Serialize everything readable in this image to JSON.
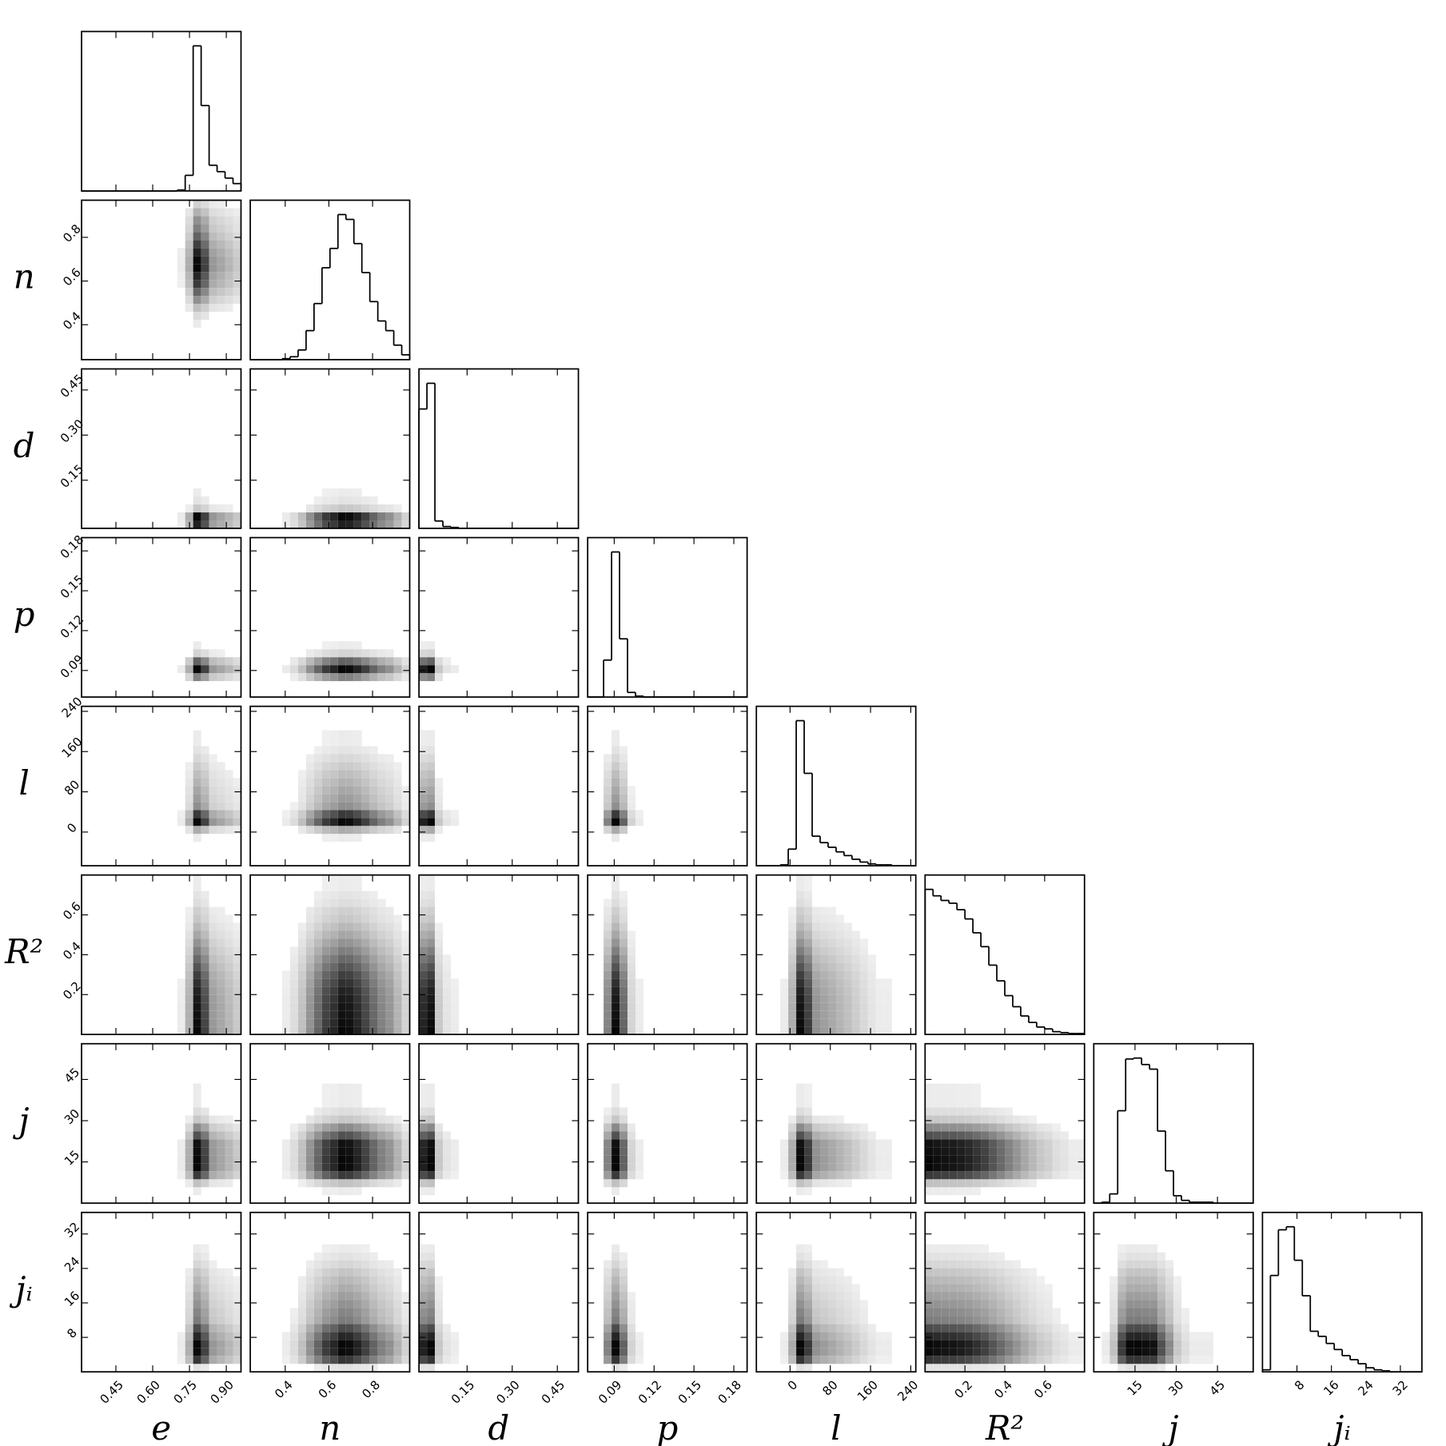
{
  "chart_data": {
    "type": "corner",
    "color": "#000000",
    "variables": [
      {
        "label": "e",
        "lim": [
          0.31,
          0.96
        ],
        "ticks": [
          0.45,
          {
            "value": 0.6,
            "label": "0.60"
          },
          0.75,
          {
            "value": 0.9,
            "label": "0.90"
          }
        ],
        "bins": [
          0.31,
          0.3425,
          0.375,
          0.4075,
          0.44,
          0.4725,
          0.505,
          0.5375,
          0.57,
          0.6025,
          0.635,
          0.6675,
          0.7,
          0.7325,
          0.765,
          0.7975,
          0.83,
          0.8625,
          0.895,
          0.9275,
          0.96
        ],
        "counts": [
          0,
          0,
          0,
          0,
          0,
          0,
          0,
          0,
          0,
          0,
          0,
          0,
          1,
          17,
          158,
          93,
          28,
          21,
          14,
          8
        ]
      },
      {
        "label": "n",
        "lim": [
          0.24,
          0.97
        ],
        "ticks": [
          0.4,
          0.6,
          0.8
        ],
        "bins": [
          0.24,
          0.2765,
          0.313,
          0.3495,
          0.386,
          0.4225,
          0.459,
          0.4955,
          0.532,
          0.5685,
          0.605,
          0.6415,
          0.678,
          0.7145,
          0.751,
          0.7875,
          0.824,
          0.8605,
          0.897,
          0.9335,
          0.97
        ],
        "counts": [
          0,
          0,
          0,
          0,
          1,
          3,
          10,
          30,
          58,
          95,
          115,
          150,
          145,
          120,
          90,
          60,
          40,
          30,
          15,
          5
        ]
      },
      {
        "label": "d",
        "lim": [
          -0.01,
          0.52
        ],
        "ticks": [
          0.15,
          {
            "value": 0.3,
            "label": "0.30"
          },
          0.45
        ],
        "bins": [
          -0.01,
          0.0165,
          0.043,
          0.0695,
          0.096,
          0.1225,
          0.149,
          0.1755,
          0.202,
          0.2285,
          0.255,
          0.2815,
          0.308,
          0.3345,
          0.361,
          0.3875,
          0.414,
          0.4405,
          0.467,
          0.4935,
          0.52
        ],
        "counts": [
          130,
          158,
          8,
          2,
          1,
          0,
          0,
          0,
          0,
          0,
          0,
          0,
          0,
          0,
          0,
          0,
          0,
          0,
          0,
          0
        ]
      },
      {
        "label": "p",
        "lim": [
          0.07,
          0.19
        ],
        "ticks": [
          0.09,
          0.12,
          0.15,
          0.18
        ],
        "bins": [
          0.07,
          0.076,
          0.082,
          0.088,
          0.094,
          0.1,
          0.106,
          0.112,
          0.118,
          0.124,
          0.13,
          0.136,
          0.142,
          0.148,
          0.154,
          0.16,
          0.166,
          0.172,
          0.178,
          0.184,
          0.19
        ],
        "counts": [
          0,
          0,
          40,
          157,
          63,
          5,
          1,
          0,
          0,
          0,
          0,
          0,
          0,
          0,
          0,
          0,
          0,
          0,
          0,
          0
        ]
      },
      {
        "label": "l",
        "lim": [
          -67,
          250
        ],
        "ticks": [
          0,
          80,
          160,
          240
        ],
        "bins": [
          -67,
          -51.15,
          -35.3,
          -19.45,
          -3.6,
          12.25,
          28.1,
          43.95,
          59.8,
          75.65,
          91.5,
          107.35,
          123.2,
          139.05,
          154.9,
          170.75,
          186.6,
          202.45,
          218.3,
          234.15,
          250
        ],
        "counts": [
          0,
          0,
          0,
          1,
          18,
          157,
          100,
          32,
          25,
          20,
          15,
          11,
          7,
          4,
          2,
          1,
          1,
          0,
          0,
          0
        ]
      },
      {
        "label": "R²",
        "lim": [
          0,
          0.8
        ],
        "ticks": [
          0.2,
          0.4,
          0.6
        ],
        "bins": [
          0,
          0.04,
          0.08,
          0.12,
          0.16,
          0.2,
          0.24,
          0.28,
          0.32,
          0.36,
          0.4,
          0.44,
          0.48,
          0.52,
          0.56,
          0.6,
          0.64,
          0.68,
          0.72,
          0.76,
          0.8
        ],
        "counts": [
          157,
          150,
          145,
          142,
          135,
          125,
          110,
          95,
          75,
          58,
          42,
          30,
          20,
          13,
          8,
          6,
          3,
          2,
          1,
          1
        ]
      },
      {
        "label": "j",
        "lim": [
          0,
          58
        ],
        "ticks": [
          15,
          30,
          45
        ],
        "bins": [
          0,
          2.9,
          5.8,
          8.7,
          11.6,
          14.5,
          17.4,
          20.3,
          23.2,
          26.1,
          29,
          31.9,
          34.8,
          37.7,
          40.6,
          43.5,
          46.4,
          49.3,
          52.2,
          55.1,
          58
        ],
        "counts": [
          0,
          1,
          10,
          100,
          156,
          157,
          150,
          145,
          78,
          35,
          8,
          3,
          1,
          1,
          1,
          0,
          0,
          0,
          0,
          0
        ]
      },
      {
        "label": "jᵢ",
        "lim": [
          0,
          37
        ],
        "ticks": [
          8,
          16,
          24,
          32
        ],
        "bins": [
          0,
          1.85,
          3.7,
          5.55,
          7.4,
          9.25,
          11.1,
          12.95,
          14.8,
          16.65,
          18.5,
          20.35,
          22.2,
          24.05,
          25.9,
          27.75,
          29.6,
          31.45,
          33.3,
          35.15,
          37
        ],
        "counts": [
          2,
          95,
          140,
          143,
          110,
          75,
          40,
          35,
          28,
          22,
          16,
          12,
          8,
          4,
          2,
          1,
          0,
          0,
          0,
          0
        ]
      }
    ]
  }
}
